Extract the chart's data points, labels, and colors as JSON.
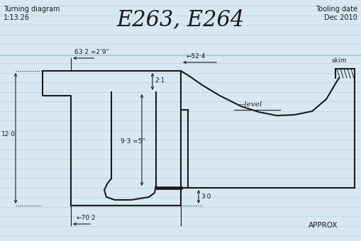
{
  "title": "E263, E264",
  "subtitle_left_1": "Turning diagram",
  "subtitle_left_2": "1:13.26",
  "subtitle_right_1": "Tooling date",
  "subtitle_right_2": "Dec 2010",
  "label_63_2": "63·2 =2’9\"",
  "label_52_4": "←52·4",
  "label_2_1": "2·1",
  "label_12_0": "12·0",
  "label_9_3": "9·3 =5\"",
  "label_3_0": "3·0",
  "label_70_2": "←70·2",
  "label_level": "—level",
  "label_skim": "skim",
  "label_approx": "APPROX",
  "bg_color": "#d8e8f2",
  "line_color": "#1a1a1a",
  "ruled_line_color": "#b8cfe0"
}
